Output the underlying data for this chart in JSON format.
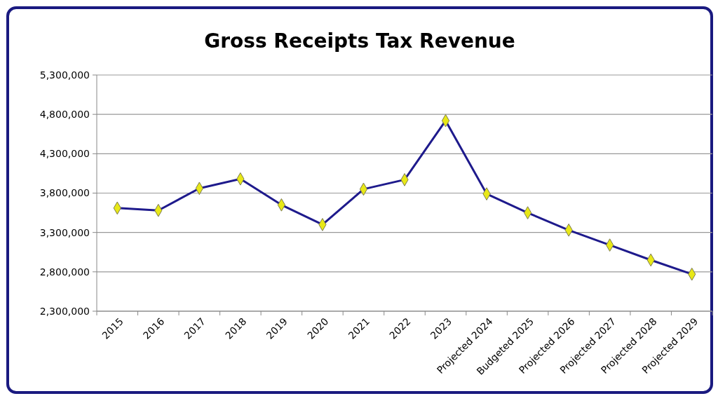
{
  "chart_data": {
    "type": "line",
    "title": "Gross Receipts Tax Revenue",
    "categories": [
      "2015",
      "2016",
      "2017",
      "2018",
      "2019",
      "2020",
      "2021",
      "2022",
      "2023",
      "Projected 2024",
      "Budgeted 2025",
      "Projected 2026",
      "Projected 2027",
      "Projected 2028",
      "Projected 2029"
    ],
    "series": [
      {
        "color": "#1e1a8c",
        "values": [
          3610000,
          3580000,
          3860000,
          3980000,
          3650000,
          3400000,
          3850000,
          3970000,
          4720000,
          3790000,
          3550000,
          3330000,
          3140000,
          2950000,
          2770000
        ]
      }
    ],
    "ylim": [
      2300000,
      5300000
    ],
    "yticks": [
      {
        "value": 2300000,
        "label": "2,300,000"
      },
      {
        "value": 2800000,
        "label": "2,800,000"
      },
      {
        "value": 3300000,
        "label": "3,300,000"
      },
      {
        "value": 3800000,
        "label": "3,800,000"
      },
      {
        "value": 4300000,
        "label": "4,300,000"
      },
      {
        "value": 4800000,
        "label": "4,800,000"
      },
      {
        "value": 5300000,
        "label": "5,300,000"
      }
    ],
    "grid": "y",
    "marker": "diamond",
    "line_style": "solid"
  }
}
